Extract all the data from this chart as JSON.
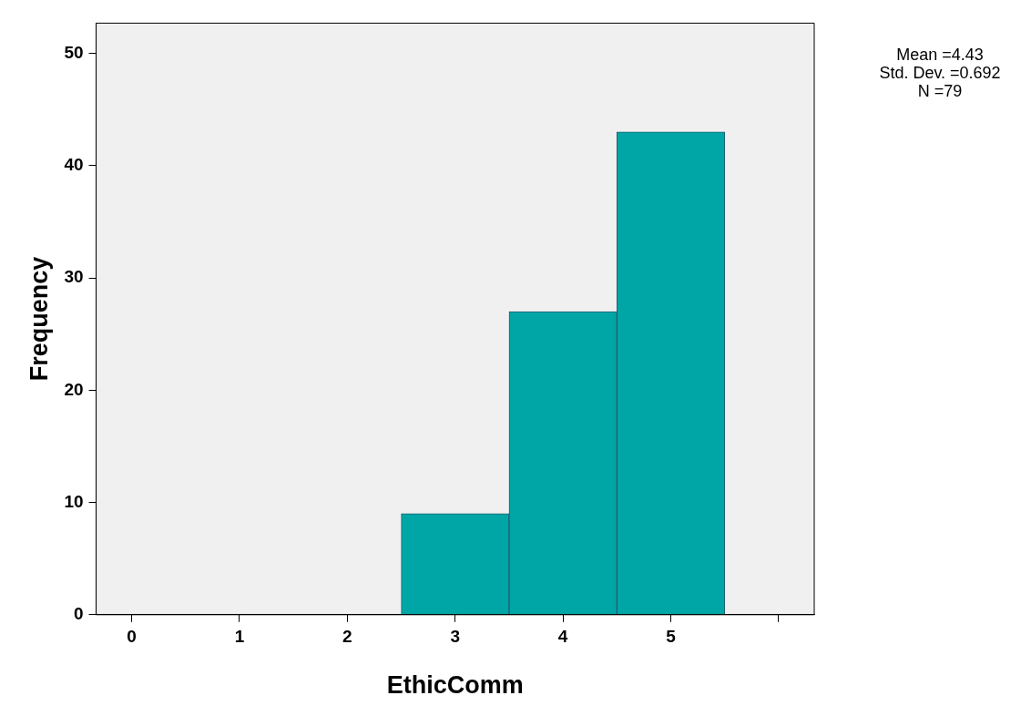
{
  "chart_data": {
    "type": "histogram",
    "xlabel": "EthicComm",
    "ylabel": "Frequency",
    "bins": [
      2.5,
      3.5,
      4.5,
      5.5
    ],
    "values": [
      9,
      27,
      43
    ],
    "color": "#00a6a6",
    "xlim": [
      -0.33,
      6.33
    ],
    "xticks": [
      0,
      1,
      2,
      3,
      4,
      5,
      {
        "value": 6,
        "label": null
      }
    ],
    "ylim": [
      0,
      52.7
    ],
    "yticks": [
      0,
      10,
      20,
      30,
      40,
      50
    ],
    "grid": false,
    "legend": false,
    "annotations": [
      "Mean =4.43",
      "Std. Dev. =0.692",
      "N =79"
    ]
  }
}
